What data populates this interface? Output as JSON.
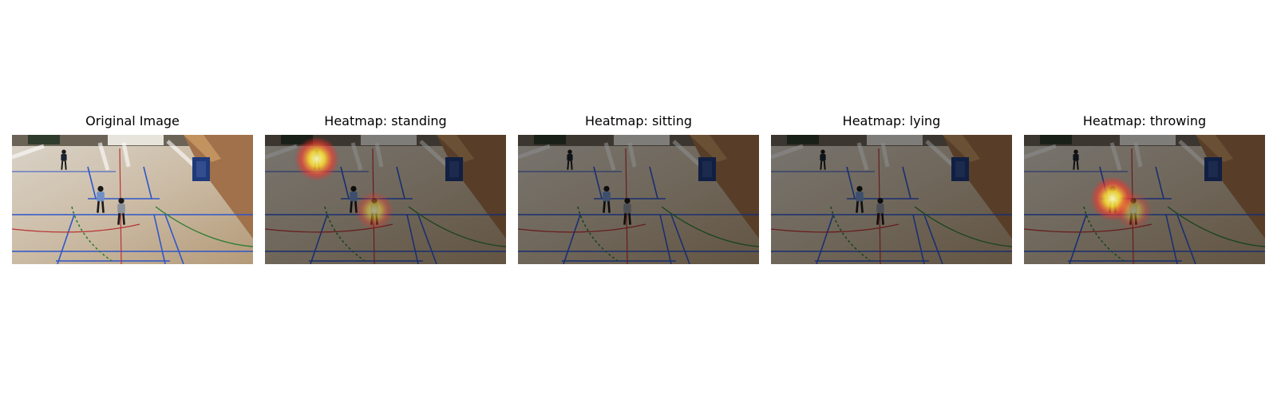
{
  "panels": [
    {
      "title": "Original Image",
      "dimmed": false,
      "heat": []
    },
    {
      "title": "Heatmap: standing",
      "dimmed": true,
      "heat": [
        {
          "person": "far-left",
          "intensity": 1.0
        },
        {
          "person": "front-right",
          "intensity": 0.55
        }
      ]
    },
    {
      "title": "Heatmap: sitting",
      "dimmed": true,
      "heat": []
    },
    {
      "title": "Heatmap: lying",
      "dimmed": true,
      "heat": []
    },
    {
      "title": "Heatmap: throwing",
      "dimmed": true,
      "heat": [
        {
          "person": "front-middle",
          "intensity": 1.0
        },
        {
          "person": "front-right",
          "intensity": 0.45
        }
      ]
    }
  ]
}
